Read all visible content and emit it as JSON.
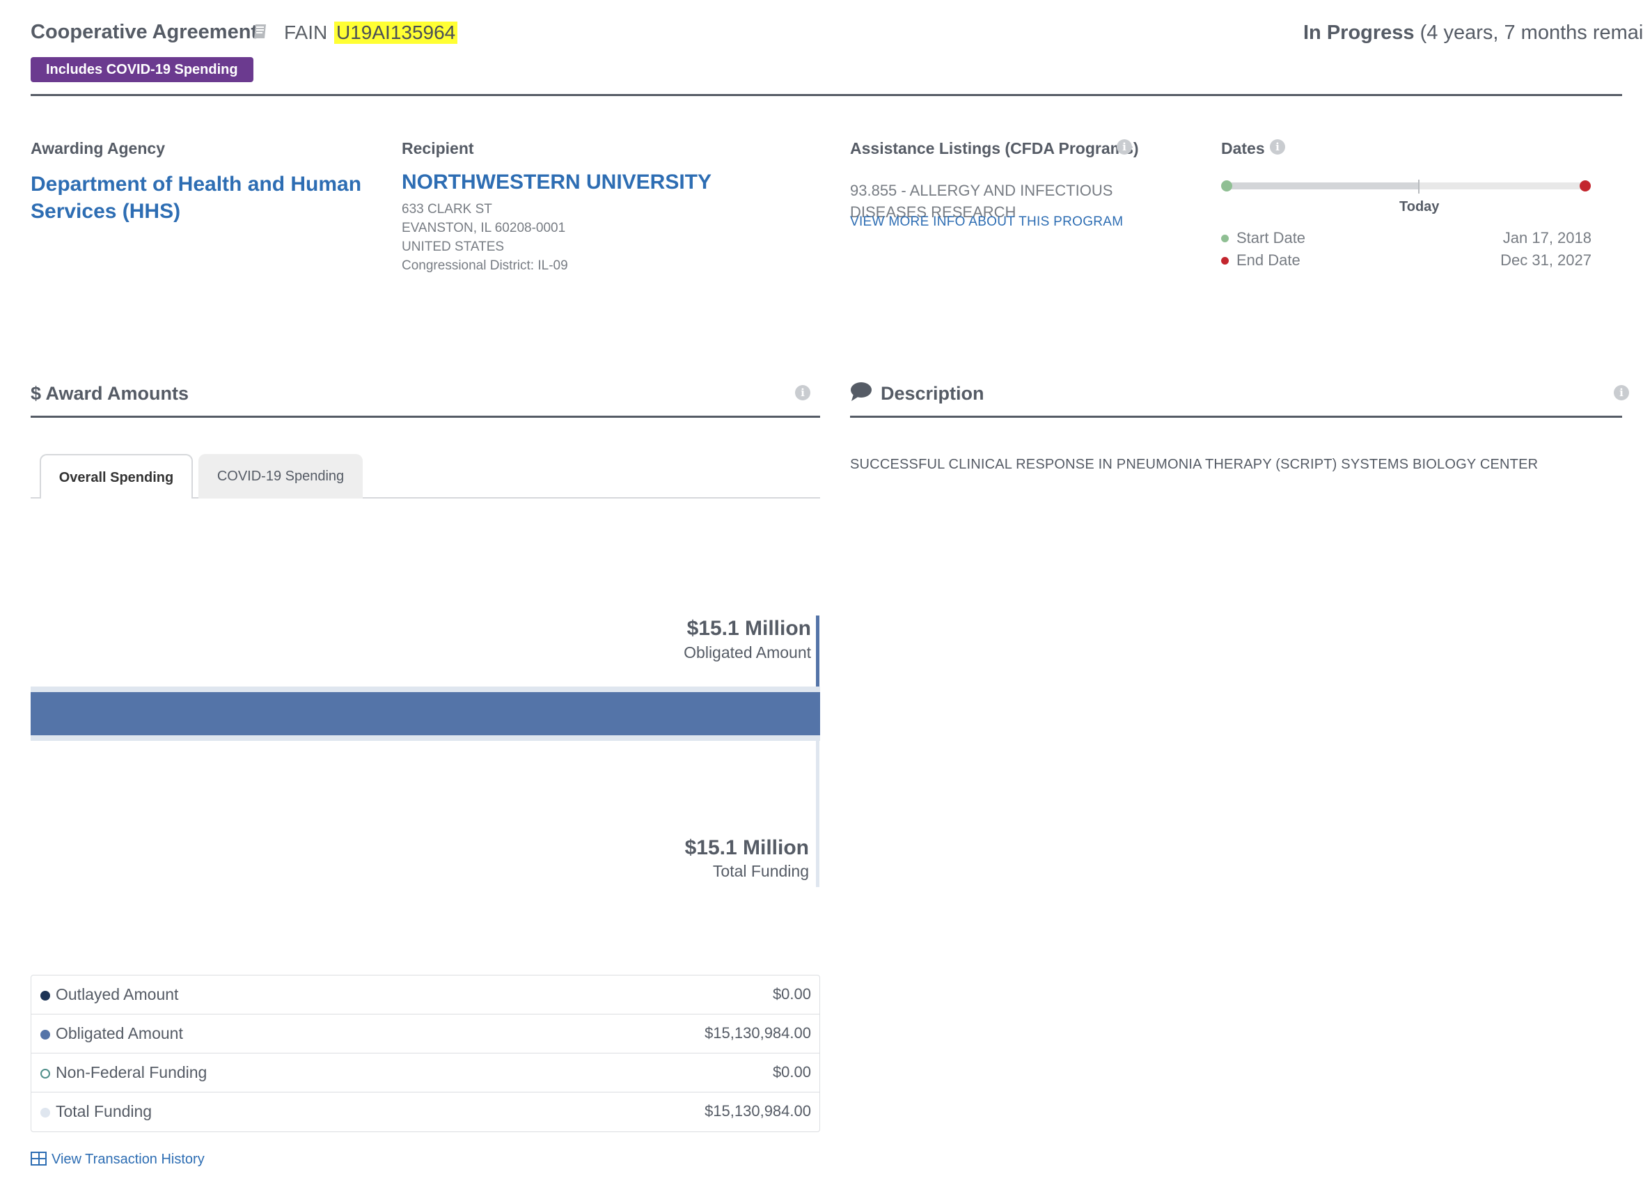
{
  "header": {
    "award_type": "Cooperative Agreement",
    "fain_label": "FAIN",
    "fain_value": "U19AI135964",
    "covid_badge": "Includes COVID-19 Spending",
    "status_bold": "In Progress",
    "status_detail": "(4 years, 7 months remai"
  },
  "agency": {
    "label": "Awarding Agency",
    "name": "Department of Health and Human Services (HHS)"
  },
  "recipient": {
    "label": "Recipient",
    "name": "NORTHWESTERN UNIVERSITY",
    "address_line1": "633 CLARK ST",
    "address_line2": "EVANSTON, IL 60208-0001",
    "country": "UNITED STATES",
    "district": "Congressional District: IL-09"
  },
  "cfda": {
    "label": "Assistance Listings (CFDA Programs)",
    "program": "93.855 - ALLERGY AND INFECTIOUS DISEASES RESEARCH",
    "link": "VIEW MORE INFO ABOUT THIS PROGRAM",
    "info_icon": "info-icon"
  },
  "dates": {
    "label": "Dates",
    "today_label": "Today",
    "start_label": "Start Date",
    "start_value": "Jan 17, 2018",
    "end_label": "End Date",
    "end_value": "Dec 31, 2027",
    "colors": {
      "start": "#8fbf93",
      "end": "#c3262e"
    }
  },
  "amounts": {
    "title": "$ Award Amounts",
    "tabs": [
      {
        "label": "Overall Spending",
        "active": true
      },
      {
        "label": "COVID-19 Spending",
        "active": false
      }
    ],
    "obligated_big": "$15.1 Million",
    "obligated_caption": "Obligated Amount",
    "total_big": "$15.1 Million",
    "total_caption": "Total Funding",
    "legend": [
      {
        "label": "Outlayed Amount",
        "value": "$0.00",
        "color": "#1c3355"
      },
      {
        "label": "Obligated Amount",
        "value": "$15,130,984.00",
        "color": "#5474a8"
      },
      {
        "label": "Non-Federal Funding",
        "value": "$0.00",
        "color": "#4f8f8a"
      },
      {
        "label": "Total Funding",
        "value": "$15,130,984.00",
        "color": "#dfe6ef"
      }
    ],
    "history_link": "View Transaction History"
  },
  "description": {
    "title": "Description",
    "text": "SUCCESSFUL CLINICAL RESPONSE IN PNEUMONIA THERAPY (SCRIPT) SYSTEMS BIOLOGY CENTER"
  }
}
